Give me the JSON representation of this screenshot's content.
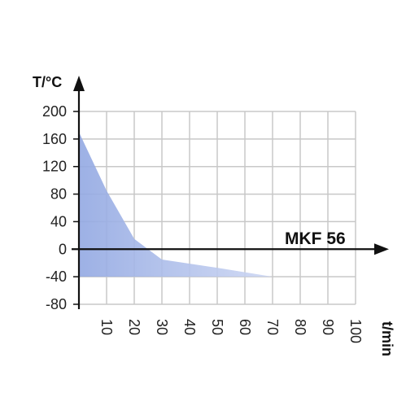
{
  "chart_data": {
    "type": "area",
    "title": "",
    "xlabel": "t/min",
    "ylabel": "T/°C",
    "xlim": [
      0,
      100
    ],
    "ylim": [
      -80,
      200
    ],
    "x_ticks": [
      10,
      20,
      30,
      40,
      50,
      60,
      70,
      80,
      90,
      100
    ],
    "x_tick_labels": [
      "10",
      "20",
      "30",
      "40",
      "50",
      "60",
      "70",
      "80",
      "90",
      "100"
    ],
    "y_ticks": [
      200,
      160,
      120,
      80,
      40,
      0,
      -40,
      -80
    ],
    "y_tick_labels": [
      "200",
      "160",
      "120",
      "80",
      "40",
      "0",
      "-40",
      "-80"
    ],
    "grid": true,
    "area_baseline": -40,
    "series": [
      {
        "x": [
          0,
          10,
          20,
          30,
          50,
          70
        ],
        "values": [
          170,
          85,
          15,
          -15,
          -27,
          -40
        ],
        "color": "#9fb3e8"
      }
    ],
    "annotation": "MKF 56",
    "colors": {
      "area": "#9fb3e8",
      "grid": "#c8c8c8",
      "axis": "#111111"
    }
  }
}
